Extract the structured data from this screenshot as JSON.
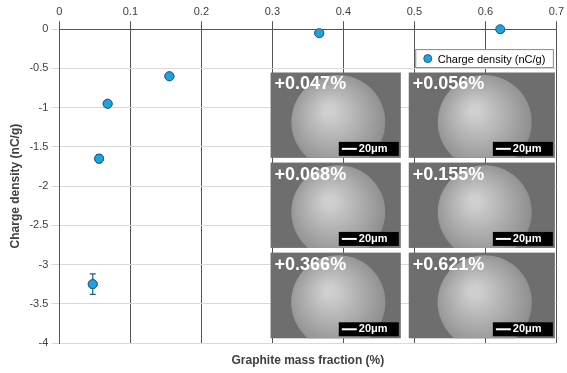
{
  "chart_data": {
    "type": "scatter",
    "x_label": "Graphite mass fraction (%)",
    "y_label": "Charge density (nC/g)",
    "series": [
      {
        "name": "Charge density (nC/g)",
        "color": "#1fa3e0",
        "x": [
          0.047,
          0.056,
          0.068,
          0.155,
          0.366,
          0.621
        ],
        "values": [
          -3.25,
          -1.65,
          -0.95,
          -0.6,
          -0.05,
          0.0
        ],
        "errors": [
          0.13,
          0.05,
          0,
          0,
          0,
          0
        ]
      }
    ],
    "xlim": [
      0,
      0.7
    ],
    "xticks": [
      0,
      0.1,
      0.2,
      0.3,
      0.4,
      0.5,
      0.6,
      0.7
    ],
    "ylim": [
      -4,
      0
    ],
    "yticks": [
      -4,
      -3.5,
      -3,
      -2.5,
      -2,
      -1.5,
      -1,
      -0.5,
      0
    ],
    "grid": true,
    "legend": "top-right",
    "annotations": [
      "+0.047%",
      "+0.056%",
      "+0.068%",
      "+0.155%",
      "+0.366%",
      "+0.621%"
    ],
    "inset_scale_label": "20μm"
  }
}
